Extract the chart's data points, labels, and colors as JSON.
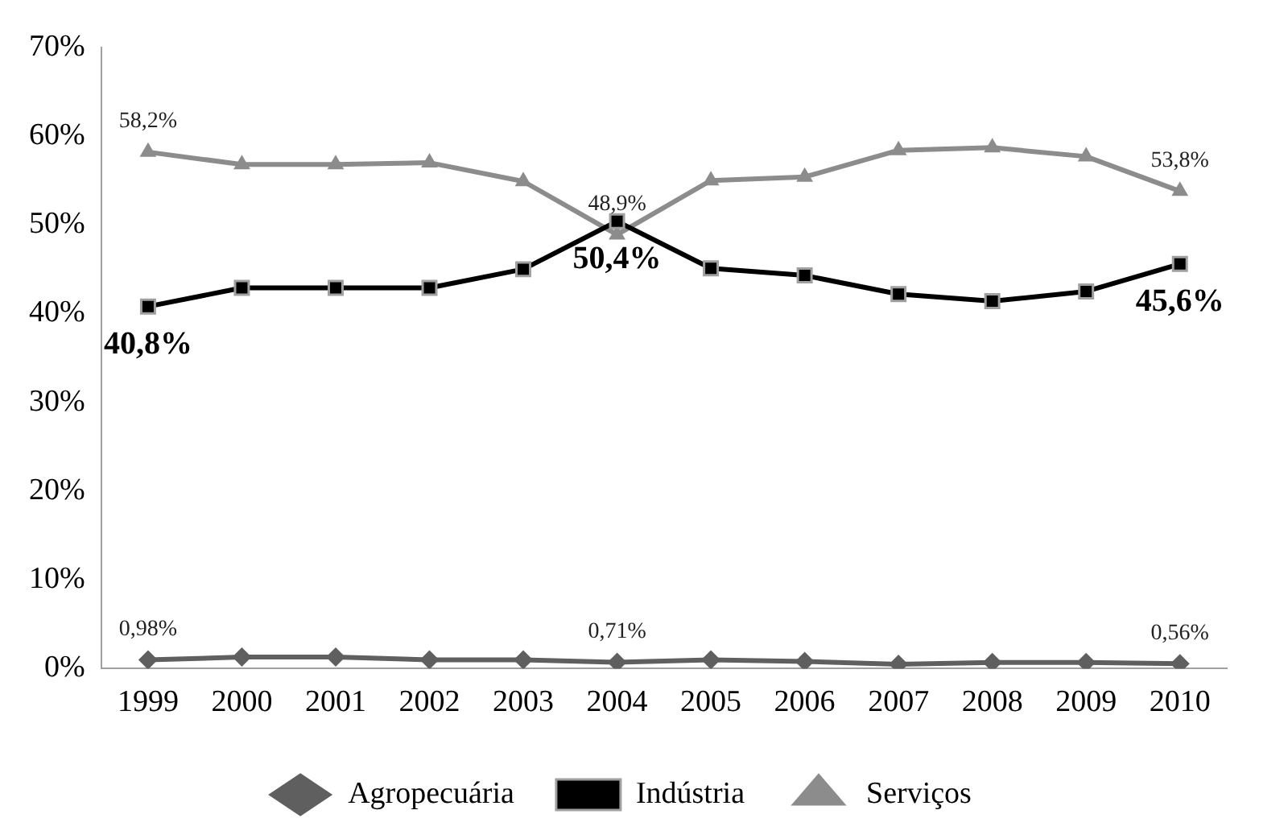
{
  "chart_data": {
    "type": "line",
    "categories": [
      "1999",
      "2000",
      "2001",
      "2002",
      "2003",
      "2004",
      "2005",
      "2006",
      "2007",
      "2008",
      "2009",
      "2010"
    ],
    "series": [
      {
        "name": "Agropecuária",
        "color": "#5f5f5f",
        "marker": "diamond",
        "values": [
          0.98,
          1.3,
          1.3,
          1.0,
          1.0,
          0.71,
          1.0,
          0.8,
          0.5,
          0.7,
          0.7,
          0.56
        ],
        "value_labels": [
          "0,98%",
          null,
          null,
          null,
          null,
          "0,71%",
          null,
          null,
          null,
          null,
          null,
          "0,56%"
        ]
      },
      {
        "name": "Indústria",
        "color": "#000000",
        "marker": "square",
        "values": [
          40.8,
          42.9,
          42.9,
          42.9,
          45.0,
          50.4,
          45.1,
          44.3,
          42.2,
          41.4,
          42.5,
          45.6
        ],
        "value_labels": [
          "40,8%",
          null,
          null,
          null,
          null,
          "50,4%",
          null,
          null,
          null,
          null,
          null,
          "45,6%"
        ]
      },
      {
        "name": "Serviços",
        "color": "#8c8c8c",
        "marker": "triangle",
        "values": [
          58.2,
          56.8,
          56.8,
          57.0,
          54.9,
          48.9,
          55.0,
          55.4,
          58.4,
          58.7,
          57.7,
          53.8
        ],
        "value_labels": [
          "58,2%",
          null,
          null,
          null,
          null,
          "48,9%",
          null,
          null,
          null,
          null,
          null,
          "53,8%"
        ]
      }
    ],
    "ylim": [
      0,
      70
    ],
    "yticks": [
      {
        "value": 0,
        "label": "0%"
      },
      {
        "value": 10,
        "label": "10%"
      },
      {
        "value": 20,
        "label": "20%"
      },
      {
        "value": 30,
        "label": "30%"
      },
      {
        "value": 40,
        "label": "40%"
      },
      {
        "value": 50,
        "label": "50%"
      },
      {
        "value": 60,
        "label": "60%"
      },
      {
        "value": 70,
        "label": "70%"
      }
    ],
    "grid": false,
    "legend": "bottom"
  }
}
